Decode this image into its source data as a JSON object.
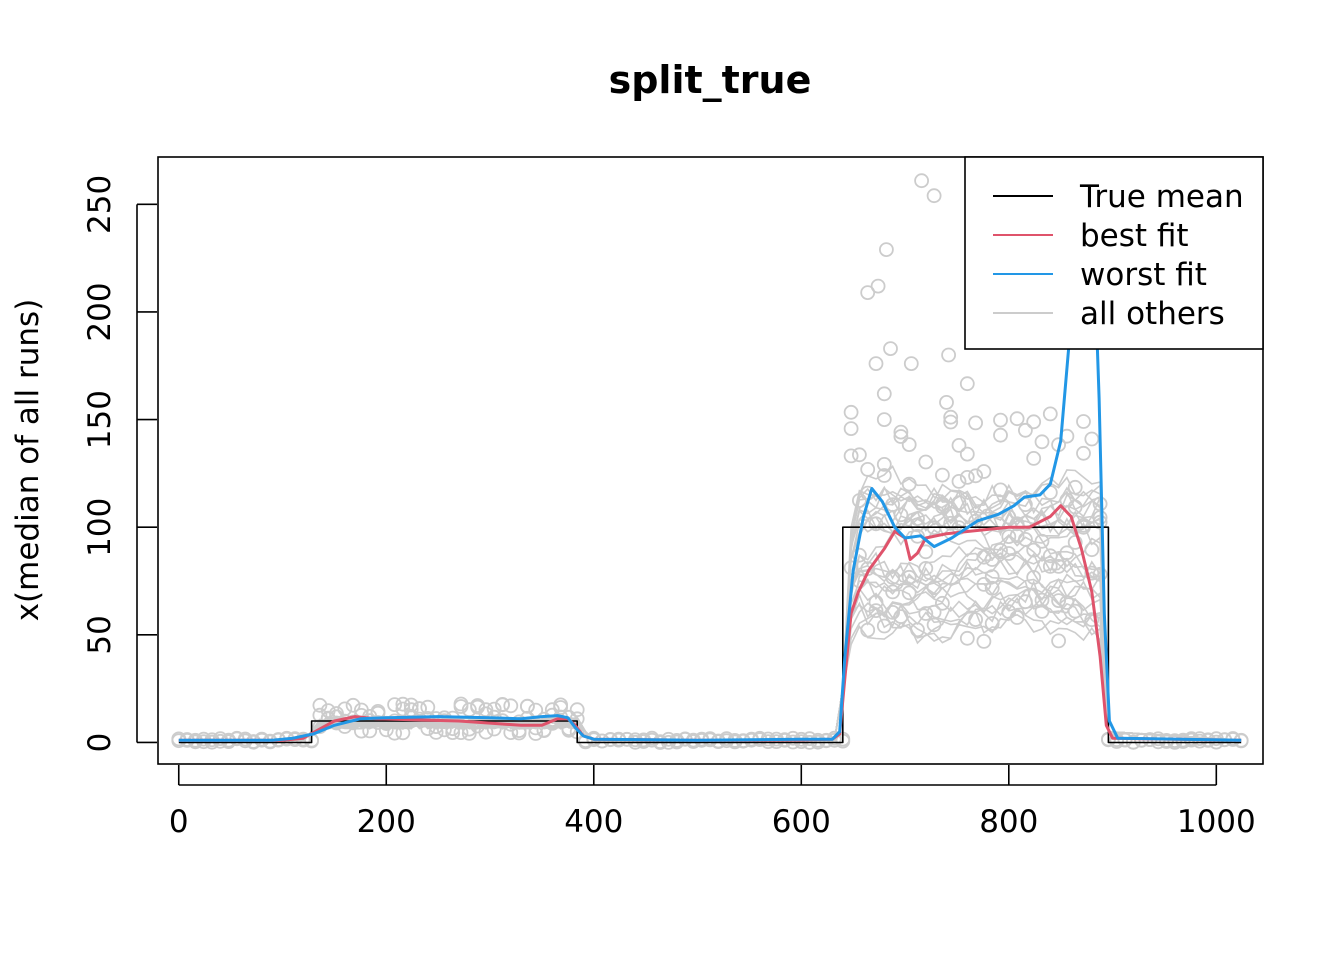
{
  "chart_data": {
    "type": "line",
    "title": "split_true",
    "xlabel": "",
    "ylabel": "x(median of all runs)",
    "xlim": [
      -20,
      1045
    ],
    "ylim": [
      -10,
      272
    ],
    "x_ticks": [
      0,
      200,
      400,
      600,
      800,
      1000
    ],
    "x_tick_labels": [
      "0",
      "200",
      "400",
      "600",
      "800",
      "1000"
    ],
    "y_ticks": [
      0,
      50,
      100,
      150,
      200,
      250
    ],
    "y_tick_labels": [
      "0",
      "50",
      "100",
      "150",
      "200",
      "250"
    ],
    "legend_position": "top-right",
    "grid": false,
    "colors": {
      "true_mean": "#000000",
      "best_fit": "#DF536B",
      "worst_fit": "#2297E6",
      "all_others": "#CCCCCC"
    },
    "legend": [
      {
        "label": "True mean",
        "color": "#000000"
      },
      {
        "label": "best fit",
        "color": "#DF536B"
      },
      {
        "label": "worst fit",
        "color": "#2297E6"
      },
      {
        "label": "all others",
        "color": "#CCCCCC"
      }
    ],
    "series": [
      {
        "name": "True mean",
        "color": "#000000",
        "points": [
          [
            0,
            0
          ],
          [
            128,
            0
          ],
          [
            128,
            10
          ],
          [
            384,
            10
          ],
          [
            384,
            0
          ],
          [
            640,
            0
          ],
          [
            640,
            100
          ],
          [
            896,
            100
          ],
          [
            896,
            0
          ],
          [
            1024,
            0
          ]
        ]
      },
      {
        "name": "best fit",
        "color": "#DF536B",
        "points": [
          [
            0,
            1
          ],
          [
            100,
            1
          ],
          [
            120,
            2
          ],
          [
            135,
            6
          ],
          [
            150,
            10
          ],
          [
            170,
            12
          ],
          [
            190,
            11
          ],
          [
            230,
            10.5
          ],
          [
            270,
            10
          ],
          [
            300,
            9
          ],
          [
            330,
            8
          ],
          [
            350,
            8
          ],
          [
            365,
            11
          ],
          [
            375,
            11
          ],
          [
            382,
            8
          ],
          [
            390,
            3
          ],
          [
            400,
            1.5
          ],
          [
            500,
            1
          ],
          [
            600,
            1.2
          ],
          [
            630,
            1.5
          ],
          [
            637,
            4
          ],
          [
            642,
            30
          ],
          [
            648,
            60
          ],
          [
            655,
            70
          ],
          [
            665,
            80
          ],
          [
            680,
            90
          ],
          [
            690,
            98
          ],
          [
            700,
            95
          ],
          [
            705,
            85
          ],
          [
            712,
            88
          ],
          [
            720,
            95
          ],
          [
            740,
            97
          ],
          [
            760,
            98
          ],
          [
            780,
            99
          ],
          [
            800,
            100
          ],
          [
            820,
            100
          ],
          [
            840,
            105
          ],
          [
            850,
            110
          ],
          [
            860,
            105
          ],
          [
            870,
            90
          ],
          [
            880,
            70
          ],
          [
            888,
            40
          ],
          [
            894,
            8
          ],
          [
            900,
            2
          ],
          [
            1024,
            1
          ]
        ]
      },
      {
        "name": "worst fit",
        "color": "#2297E6",
        "points": [
          [
            0,
            1
          ],
          [
            90,
            1
          ],
          [
            110,
            2
          ],
          [
            130,
            4
          ],
          [
            150,
            8
          ],
          [
            175,
            11
          ],
          [
            200,
            11.5
          ],
          [
            250,
            12
          ],
          [
            300,
            11.5
          ],
          [
            330,
            11
          ],
          [
            350,
            12
          ],
          [
            365,
            12.5
          ],
          [
            375,
            11.5
          ],
          [
            382,
            7
          ],
          [
            390,
            3
          ],
          [
            400,
            1.5
          ],
          [
            500,
            1
          ],
          [
            600,
            1.5
          ],
          [
            630,
            1.5
          ],
          [
            637,
            5
          ],
          [
            642,
            40
          ],
          [
            650,
            80
          ],
          [
            660,
            105
          ],
          [
            668,
            118
          ],
          [
            678,
            112
          ],
          [
            690,
            100
          ],
          [
            700,
            95
          ],
          [
            715,
            96
          ],
          [
            728,
            91
          ],
          [
            745,
            95
          ],
          [
            770,
            103
          ],
          [
            790,
            106
          ],
          [
            805,
            110
          ],
          [
            815,
            114
          ],
          [
            830,
            115
          ],
          [
            840,
            120
          ],
          [
            850,
            140
          ],
          [
            858,
            185
          ],
          [
            866,
            220
          ],
          [
            874,
            235
          ],
          [
            882,
            230
          ],
          [
            887,
            160
          ],
          [
            892,
            60
          ],
          [
            897,
            10
          ],
          [
            905,
            2
          ],
          [
            1024,
            1
          ]
        ]
      },
      {
        "name": "all others",
        "color": "#CCCCCC",
        "points": [
          [
            0,
            1
          ],
          [
            120,
            1
          ],
          [
            128,
            5
          ],
          [
            160,
            9
          ],
          [
            384,
            9
          ],
          [
            400,
            1
          ],
          [
            636,
            1
          ],
          [
            650,
            85
          ],
          [
            700,
            90
          ],
          [
            800,
            95
          ],
          [
            880,
            90
          ],
          [
            896,
            5
          ],
          [
            1024,
            1
          ]
        ]
      }
    ]
  }
}
